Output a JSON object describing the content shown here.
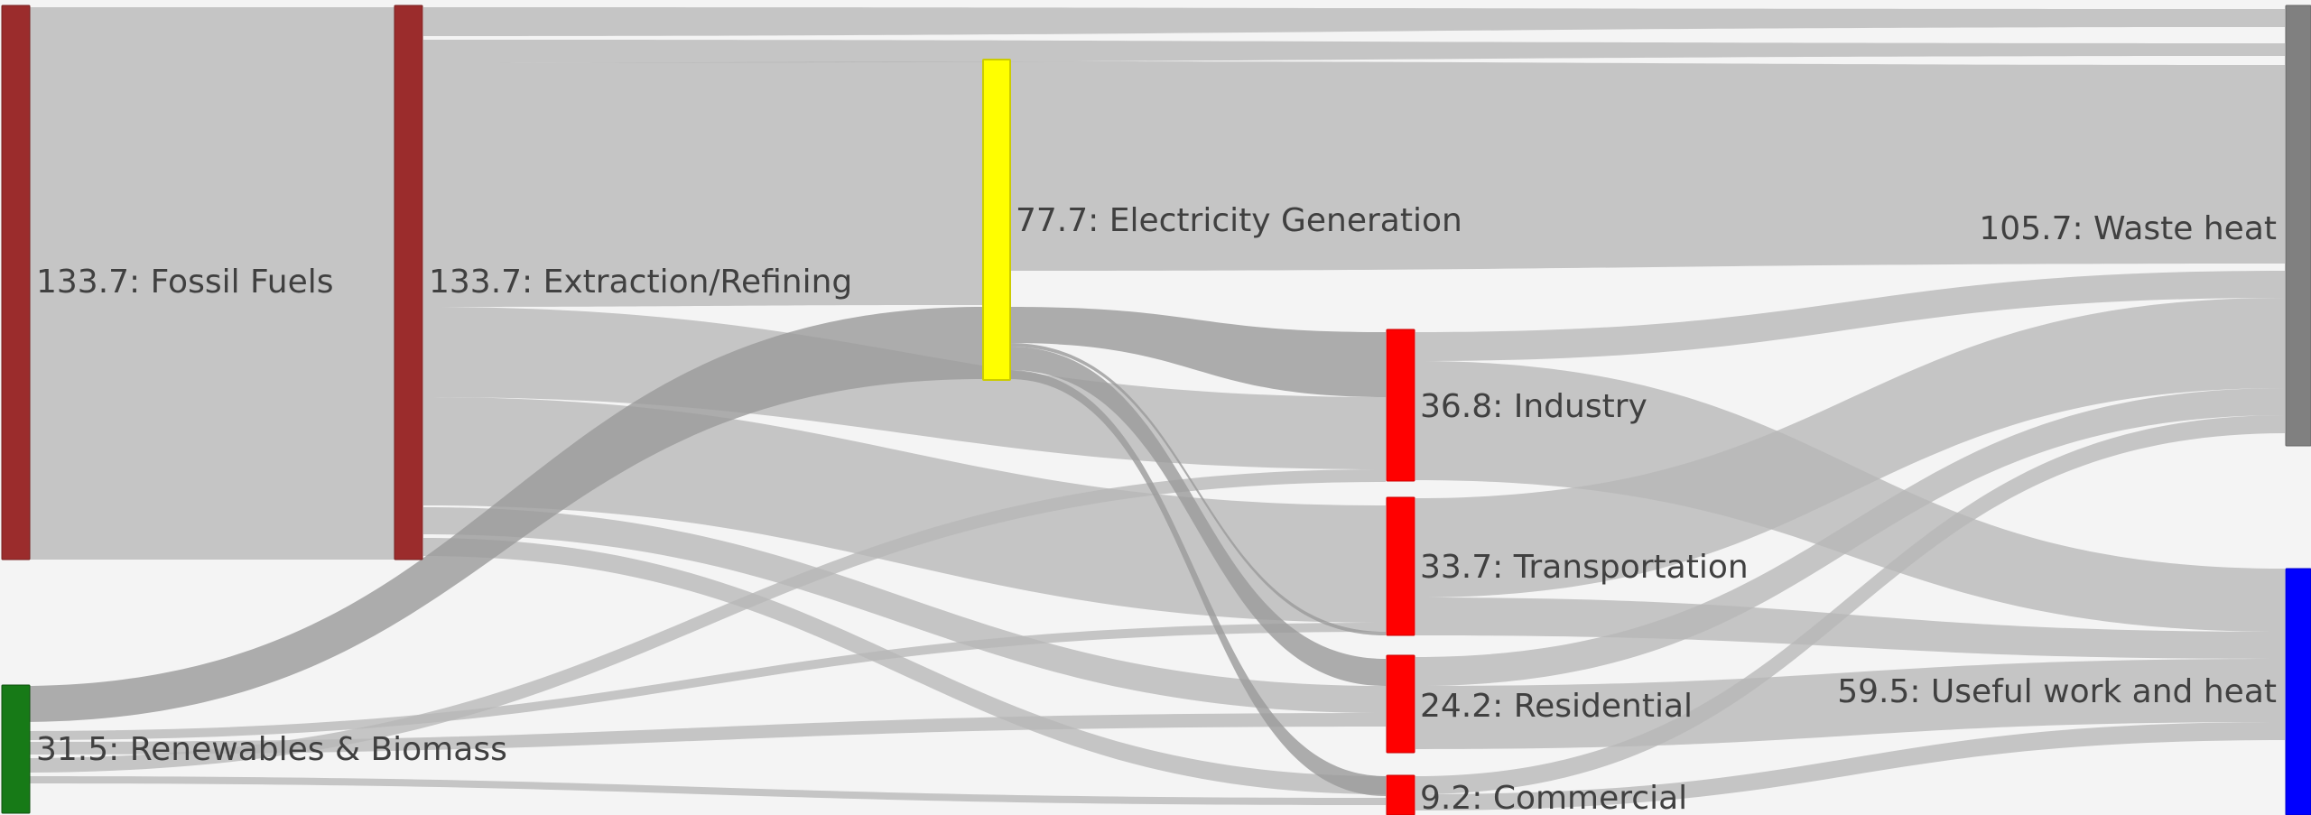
{
  "diagram": {
    "type": "sankey",
    "units": "",
    "nodes": [
      {
        "id": "fossil",
        "value": 133.7,
        "name": "Fossil Fuels",
        "label": "133.7: Fossil Fuels",
        "color": "#9b2c2c"
      },
      {
        "id": "renew",
        "value": 31.5,
        "name": "Renewables & Biomass",
        "label": "31.5: Renewables & Biomass",
        "color": "#177a17"
      },
      {
        "id": "extract",
        "value": 133.7,
        "name": "Extraction/Refining",
        "label": "133.7: Extraction/Refining",
        "color": "#9b2c2c"
      },
      {
        "id": "elec",
        "value": 77.7,
        "name": "Electricity Generation",
        "label": "77.7: Electricity Generation",
        "color": "#ffff00"
      },
      {
        "id": "industry",
        "value": 36.8,
        "name": "Industry",
        "label": "36.8: Industry",
        "color": "#ff0000"
      },
      {
        "id": "transport",
        "value": 33.7,
        "name": "Transportation",
        "label": "33.7: Transportation",
        "color": "#ff0000"
      },
      {
        "id": "residential",
        "value": 24.2,
        "name": "Residential",
        "label": "24.2: Residential",
        "color": "#ff0000"
      },
      {
        "id": "commercial",
        "value": 9.2,
        "name": "Commercial",
        "label": "9.2: Commercial",
        "color": "#ff0000"
      },
      {
        "id": "waste",
        "value": 105.7,
        "name": "Waste heat",
        "label": "105.7: Waste heat",
        "color": "#808080"
      },
      {
        "id": "useful",
        "value": 59.5,
        "name": "Useful work and heat",
        "label": "59.5: Useful work and heat",
        "color": "#0000ff"
      }
    ],
    "colors": {
      "link": "#b7b7b7",
      "link_highlight": "#9a9a9a",
      "background": "#f4f4f4"
    }
  }
}
